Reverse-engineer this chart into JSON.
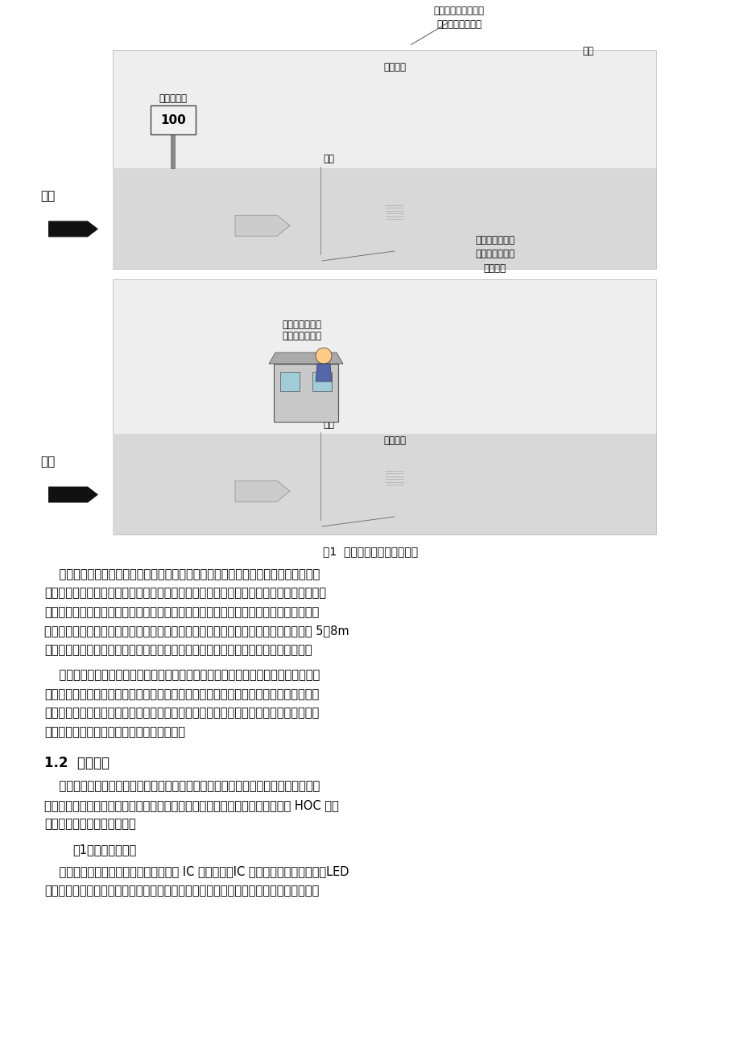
{
  "page_bg": "#ffffff",
  "diagram_border": "#c8c8c8",
  "figure_caption": "图1  车库管理系统概念示意图",
  "s1": "1.2  系统组成",
  "p1_lines": [
    "    该交通枢纽的地下停车区统一部署了停车库管理系统，系统按照全功能型智能停车场",
    "管理系统进行设计，内部车辆具有持长期卡出入库功能，临时车取临时票出入库管理功能，",
    "确保车辆停车安全。同时，考虑到交通枢纽地下停车场停放的车辆较多，而出入口设置较",
    "少，车辆进出库效率问题就显得非常重要，为此，系统需要引入远距离读卡技术，通过 5～8m",
    "的远距离读卡，实现内部车辆持长期卡不需停车即可读卡通行的目的，提高通行效率。"
  ],
  "p2_lines": [
    "    该大型交通枢纽的车库管理系统，分为西区系统及东区系统两个部分。西区系统管辖",
    "西区地下车库西侧的一进、一出社会（交通枢组、长途站内部）车辆车道。东区系统管辖",
    "东区地下车库东侧的两进、两出社会（交通枢组内部）车辆车道；东区地下车库内专设的",
    "一个社会车辆由下客区绕行入库的一进车道。"
  ],
  "sb1_lines": [
    "    某大型交通枢纽车库管理系统包括：入口部分、出口部分、管理中心三部分。在停车",
    "场进口车道边安装入口设备，在停车场出口车道边安装出口设备，并在交通枢纽 HOC 内设",
    "置交通枢纽停车场管理中心。"
  ],
  "sb2_label": "（1）车库入口部分",
  "sb3_lines": [
    "    入口部分主要由入口卡箱（内含感应式 IC 卡读卡器、IC 卡出卡机或自动出票机、LED",
    "显示屏、语音系统、对讲分机等）、自动道闸、车辆检测线圈、满位显示屏、远距离读卡"
  ]
}
